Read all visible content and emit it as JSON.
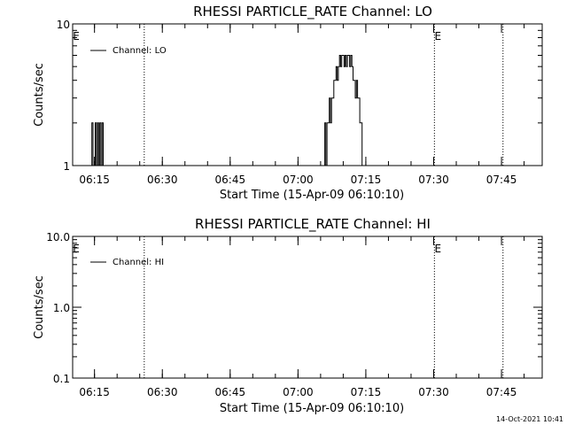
{
  "chart_data": [
    {
      "type": "line",
      "title": "RHESSI PARTICLE_RATE Channel: LO",
      "xlabel": "Start Time (15-Apr-09 06:10:10)",
      "ylabel": "Counts/sec",
      "yscale": "log",
      "xlim": [
        "06:10:10",
        "07:54:00"
      ],
      "ylim": [
        1,
        10
      ],
      "xticks": [
        "06:15",
        "06:30",
        "06:45",
        "07:00",
        "07:15",
        "07:30",
        "07:45"
      ],
      "yticks": [
        "1",
        "10"
      ],
      "grid": false,
      "legend": {
        "position": "top-left",
        "entries": [
          "Channel: LO"
        ]
      },
      "vlines": [
        "06:26:00",
        "07:30:10",
        "07:45:20"
      ],
      "markers": [
        {
          "label": "E",
          "x": "06:10:10"
        },
        {
          "label": "E",
          "x": "07:30:10"
        }
      ],
      "series": [
        {
          "name": "Channel: LO",
          "x": [
            "06:14:10",
            "06:14:25",
            "06:14:40",
            "06:14:55",
            "06:15:10",
            "06:15:25",
            "06:15:40",
            "06:15:55",
            "06:16:10",
            "06:16:25",
            "06:16:40",
            "06:16:55",
            "06:17:10",
            "06:17:25",
            "06:17:40",
            "06:17:55",
            "06:18:10",
            "06:18:25",
            "06:18:40",
            "06:18:55",
            "06:19:10",
            "07:05:40",
            "07:05:55",
            "07:06:10",
            "07:06:25",
            "07:06:40",
            "07:06:55",
            "07:07:10",
            "07:07:25",
            "07:07:40",
            "07:07:55",
            "07:08:10",
            "07:08:25",
            "07:08:40",
            "07:08:55",
            "07:09:10",
            "07:09:25",
            "07:09:40",
            "07:09:55",
            "07:10:10",
            "07:10:25",
            "07:10:40",
            "07:10:55",
            "07:11:10",
            "07:11:25",
            "07:11:40",
            "07:11:55",
            "07:12:10",
            "07:12:25",
            "07:12:40",
            "07:12:55",
            "07:13:10",
            "07:13:25",
            "07:13:40",
            "07:13:55",
            "07:14:10",
            "07:14:25",
            "07:14:40",
            "07:14:55",
            "07:15:10"
          ],
          "values": [
            1,
            2,
            1,
            1,
            2,
            1,
            2,
            1,
            2,
            1,
            2,
            1,
            1,
            1,
            1,
            1,
            1,
            1,
            1,
            1,
            1,
            1,
            2,
            1,
            2,
            2,
            3,
            2,
            3,
            3,
            4,
            4,
            5,
            4,
            5,
            6,
            5,
            6,
            6,
            5,
            6,
            5,
            6,
            6,
            5,
            6,
            5,
            4,
            4,
            3,
            4,
            3,
            3,
            2,
            2,
            1,
            1,
            1,
            1,
            1
          ]
        }
      ]
    },
    {
      "type": "line",
      "title": "RHESSI PARTICLE_RATE Channel: HI",
      "xlabel": "Start Time (15-Apr-09 06:10:10)",
      "ylabel": "Counts/sec",
      "yscale": "log",
      "xlim": [
        "06:10:10",
        "07:54:00"
      ],
      "ylim": [
        0.1,
        10
      ],
      "xticks": [
        "06:15",
        "06:30",
        "06:45",
        "07:00",
        "07:15",
        "07:30",
        "07:45"
      ],
      "yticks": [
        "0.1",
        "1.0",
        "10.0"
      ],
      "grid": false,
      "legend": {
        "position": "top-left",
        "entries": [
          "Channel: HI"
        ]
      },
      "vlines": [
        "06:26:00",
        "07:30:10",
        "07:45:20"
      ],
      "markers": [
        {
          "label": "E",
          "x": "06:10:10"
        },
        {
          "label": "E",
          "x": "07:30:10"
        }
      ],
      "series": [
        {
          "name": "Channel: HI",
          "x": [],
          "values": []
        }
      ]
    }
  ],
  "footer": {
    "timestamp": "14-Oct-2021 10:41"
  }
}
